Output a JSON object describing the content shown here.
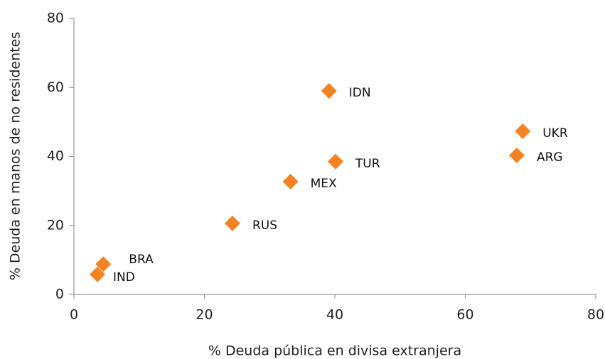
{
  "chart_data": {
    "type": "scatter",
    "xlabel": "% Deuda pública en divisa extranjera",
    "ylabel": "% Deuda en manos de no residentes",
    "color": "#f5821f",
    "points": [
      {
        "label": "IDN",
        "x": 39.1,
        "y": 59
      },
      {
        "label": "UKR",
        "x": 68.8,
        "y": 47.3
      },
      {
        "label": "ARG",
        "x": 67.9,
        "y": 40.3
      },
      {
        "label": "TUR",
        "x": 40.1,
        "y": 38.5
      },
      {
        "label": "MEX",
        "x": 33.2,
        "y": 32.7
      },
      {
        "label": "RUS",
        "x": 24.3,
        "y": 20.6
      },
      {
        "label": "BRA",
        "x": 4.5,
        "y": 8.8
      },
      {
        "label": "IND",
        "x": 3.6,
        "y": 5.8
      }
    ],
    "xlim": [
      0,
      80
    ],
    "xticks": [
      0,
      20,
      40,
      60,
      80
    ],
    "ylim": [
      0,
      80
    ],
    "yticks": [
      0,
      20,
      40,
      60,
      80
    ]
  }
}
